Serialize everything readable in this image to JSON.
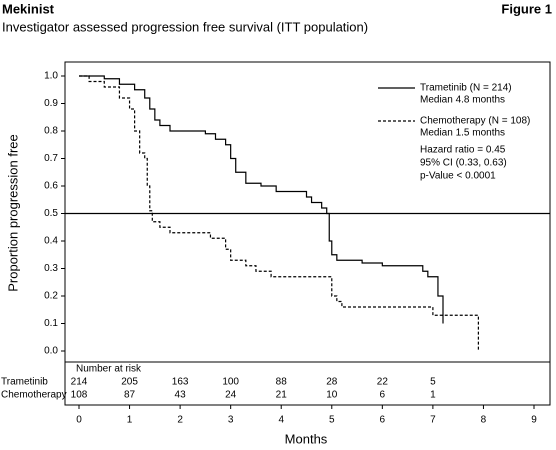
{
  "chart_data": {
    "type": "step",
    "title": "Mekinist",
    "figure_label": "Figure 1",
    "subtitle": "Investigator assessed progression free survival (ITT population)",
    "x_label": "Months",
    "y_label": "Proportion progression free",
    "xlim": [
      0,
      9
    ],
    "xticks": [
      0,
      1,
      2,
      3,
      4,
      5,
      6,
      7,
      8,
      9
    ],
    "ylim": [
      0,
      1
    ],
    "yticks": [
      {
        "value": 0,
        "label": "0.0"
      },
      0.1,
      0.2,
      0.3,
      0.4,
      0.5,
      0.6,
      0.7,
      0.8,
      0.9,
      {
        "value": 1,
        "label": "1.0"
      }
    ],
    "reference_line": 0.5,
    "series": [
      {
        "name": "Trametinib (N = 214)",
        "note": "Median 4.8 months",
        "color": "#000000",
        "dash": false,
        "x": [
          0,
          0.5,
          0.8,
          1.1,
          1.3,
          1.4,
          1.5,
          1.6,
          1.8,
          2.5,
          2.7,
          2.9,
          3.0,
          3.1,
          3.3,
          3.6,
          3.9,
          4.5,
          4.6,
          4.8,
          4.9,
          4.95,
          5.0,
          5.1,
          5.6,
          6.0,
          6.8,
          6.9,
          7.1,
          7.2
        ],
        "values": [
          1.0,
          0.99,
          0.97,
          0.95,
          0.92,
          0.88,
          0.84,
          0.82,
          0.8,
          0.79,
          0.77,
          0.75,
          0.7,
          0.65,
          0.61,
          0.6,
          0.58,
          0.56,
          0.54,
          0.52,
          0.5,
          0.4,
          0.35,
          0.33,
          0.32,
          0.31,
          0.29,
          0.27,
          0.2,
          0.1
        ]
      },
      {
        "name": "Chemotherapy (N = 108)",
        "note": "Median 1.5 months",
        "color": "#000000",
        "dash": true,
        "x": [
          0,
          0.2,
          0.5,
          0.8,
          1.0,
          1.1,
          1.2,
          1.3,
          1.35,
          1.4,
          1.45,
          1.6,
          1.8,
          2.6,
          2.9,
          3.0,
          3.3,
          3.5,
          3.8,
          5.0,
          5.1,
          5.2,
          7.0,
          7.9
        ],
        "values": [
          1.0,
          0.98,
          0.96,
          0.92,
          0.88,
          0.8,
          0.72,
          0.7,
          0.6,
          0.51,
          0.47,
          0.45,
          0.43,
          0.41,
          0.37,
          0.33,
          0.31,
          0.29,
          0.27,
          0.2,
          0.18,
          0.16,
          0.13,
          0.0
        ]
      }
    ],
    "annotations": [
      "Hazard ratio = 0.45",
      "95% CI (0.33, 0.63)",
      "p-Value < 0.0001"
    ],
    "risk_table": {
      "title": "Number at risk",
      "rows": [
        {
          "name": "Trametinib",
          "values": [
            214,
            205,
            163,
            100,
            88,
            28,
            22,
            5
          ]
        },
        {
          "name": "Chemotherapy",
          "values": [
            108,
            87,
            43,
            24,
            21,
            10,
            6,
            1
          ]
        }
      ]
    }
  }
}
